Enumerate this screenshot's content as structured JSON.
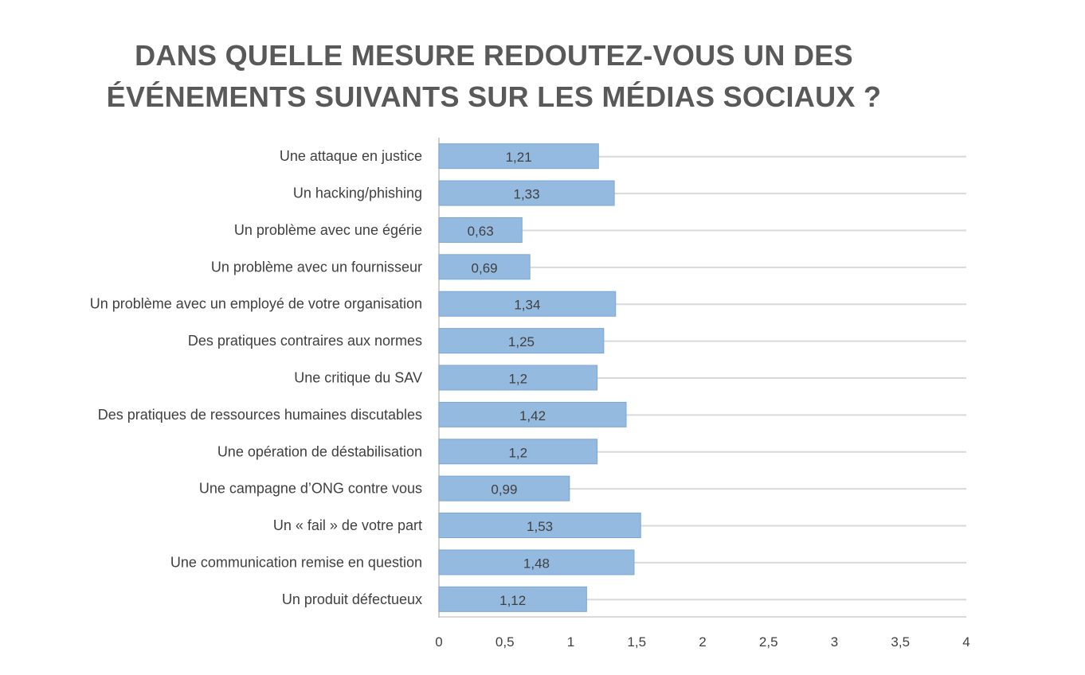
{
  "chart_data": {
    "type": "bar",
    "orientation": "horizontal",
    "title_lines": [
      "DANS QUELLE MESURE REDOUTEZ-VOUS UN DES",
      "ÉVÉNEMENTS SUIVANTS SUR LES MÉDIAS SOCIAUX ?"
    ],
    "categories": [
      "Une attaque en justice",
      "Un hacking/phishing",
      "Un problème avec une égérie",
      "Un problème avec un fournisseur",
      "Un problème avec un employé de votre organisation",
      "Des pratiques contraires aux normes ",
      "Une critique du SAV",
      "Des pratiques de ressources humaines discutables",
      "Une opération de déstabilisation",
      "Une campagne d’ONG contre vous",
      "Un « fail » de votre part",
      "Une communication remise en question",
      "Un produit défectueux"
    ],
    "values": [
      1.21,
      1.33,
      0.63,
      0.69,
      1.34,
      1.25,
      1.2,
      1.42,
      1.2,
      0.99,
      1.53,
      1.48,
      1.12
    ],
    "data_labels": [
      "1,21",
      "1,33",
      "0,63",
      "0,69",
      "1,34",
      "1,25",
      "1,2",
      "1,42",
      "1,2",
      "0,99",
      "1,53",
      "1,48",
      "1,12"
    ],
    "x_ticks": [
      0,
      0.5,
      1,
      1.5,
      2,
      2.5,
      3,
      3.5,
      4
    ],
    "x_tick_labels": [
      "0",
      "0,5",
      "1",
      "1,5",
      "2",
      "2,5",
      "3",
      "3,5",
      "4"
    ],
    "xlim": [
      0,
      4
    ],
    "grid": true,
    "legend": false,
    "colors": {
      "bar_fill": "#95badf",
      "bar_stroke": "#7aa6d6",
      "gridline": "#d9d9d9",
      "axis": "#bfbfbf",
      "title": "#595959",
      "text": "#404040"
    }
  }
}
